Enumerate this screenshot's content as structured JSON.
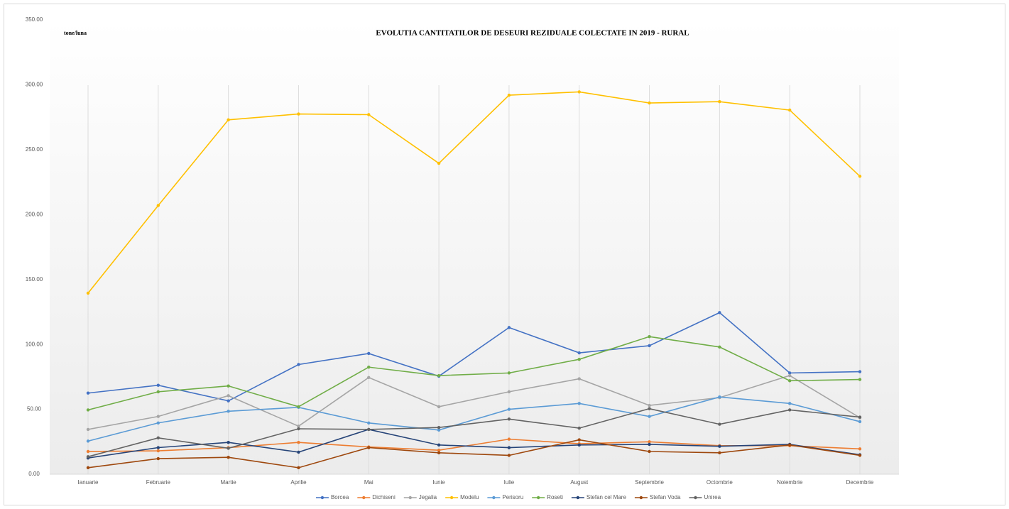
{
  "chart_data": {
    "type": "line",
    "title": "EVOLUTIA CANTITATILOR DE DESEURI REZIDUALE  COLECTATE IN 2019 - RURAL",
    "y_label": "tone/luna",
    "categories": [
      "Ianuarie",
      "Februarie",
      "Martie",
      "Aprilie",
      "Mai",
      "Iunie",
      "Iulie",
      "August",
      "Septembrie",
      "Octombrie",
      "Noiembrie",
      "Decembrie"
    ],
    "ylim": [
      0,
      350
    ],
    "yticks": [
      {
        "value": 0,
        "label": "0.00"
      },
      {
        "value": 50,
        "label": "50.00"
      },
      {
        "value": 100,
        "label": "100.00"
      },
      {
        "value": 150,
        "label": "150.00"
      },
      {
        "value": 200,
        "label": "200.00"
      },
      {
        "value": 250,
        "label": "250.00"
      },
      {
        "value": 300,
        "label": "300.00"
      },
      {
        "value": 350,
        "label": "350.00"
      }
    ],
    "grid": false,
    "legend": "bottom",
    "series": [
      {
        "name": "Borcea",
        "color": "#4472c4",
        "values": [
          62.5,
          68.5,
          56.5,
          84.5,
          93,
          75.5,
          113,
          93.5,
          99,
          124.5,
          78,
          79
        ]
      },
      {
        "name": "Dichiseni",
        "color": "#ed7d31",
        "values": [
          17.5,
          18,
          20.5,
          24.5,
          21,
          18.5,
          27,
          23.5,
          25,
          22,
          22,
          19.5
        ]
      },
      {
        "name": "Jegalia",
        "color": "#a5a5a5",
        "values": [
          34.5,
          44.5,
          60.5,
          37,
          74.5,
          52,
          63.5,
          73.5,
          53,
          59,
          76,
          43.5
        ]
      },
      {
        "name": "Modelu",
        "color": "#ffc000",
        "values": [
          139.5,
          207,
          273,
          277.5,
          277,
          239.5,
          292,
          294.5,
          286,
          287,
          280.5,
          229.5
        ]
      },
      {
        "name": "Perisoru",
        "color": "#5b9bd5",
        "values": [
          25.5,
          39.5,
          48.5,
          51.5,
          39.5,
          34,
          50,
          54.5,
          44.5,
          59.5,
          54.5,
          40.5
        ]
      },
      {
        "name": "Roseti",
        "color": "#70ad47",
        "values": [
          49.5,
          63.5,
          68,
          52,
          82.5,
          76,
          78,
          88.5,
          106,
          98,
          72,
          73
        ]
      },
      {
        "name": "Stefan cel Mare",
        "color": "#264478",
        "values": [
          12.5,
          20.5,
          24.5,
          17,
          34.5,
          22.5,
          20.5,
          22.5,
          23,
          21.5,
          23,
          15
        ]
      },
      {
        "name": "Stefan Voda",
        "color": "#9e480e",
        "values": [
          5,
          12,
          13,
          5,
          20.5,
          16.5,
          14.5,
          26.5,
          17.5,
          16.5,
          22.5,
          14.5
        ]
      },
      {
        "name": "Unirea",
        "color": "#636363",
        "values": [
          13.5,
          28,
          20,
          35,
          34.5,
          36,
          42.5,
          35.5,
          50.5,
          38.5,
          49.5,
          44
        ]
      }
    ]
  }
}
